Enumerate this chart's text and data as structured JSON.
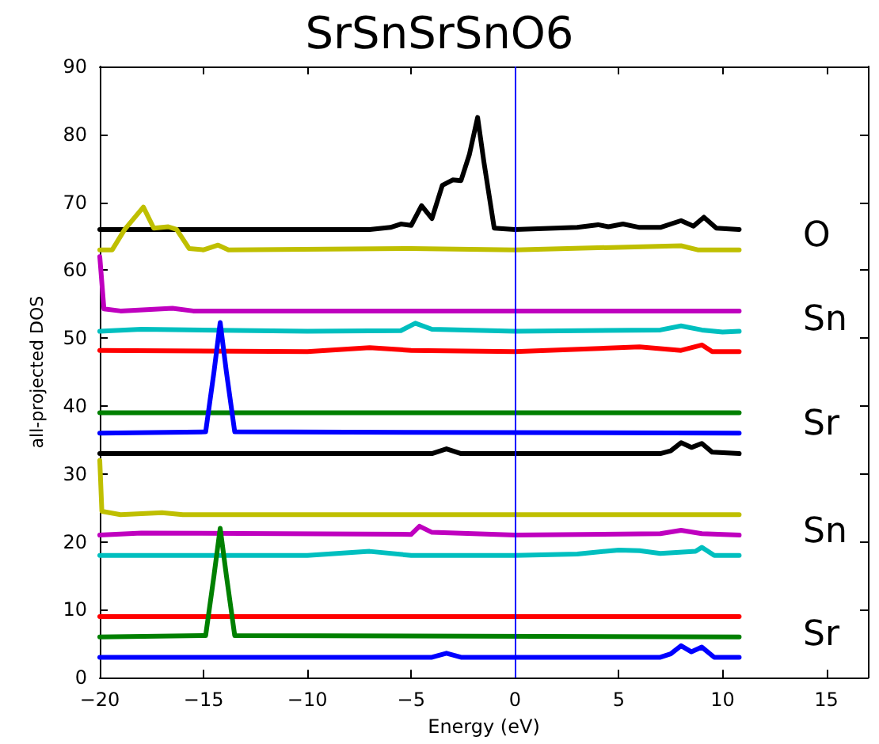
{
  "chart_data": {
    "type": "line",
    "title": "SrSnSrSnO6",
    "xlabel": "Energy (eV)",
    "ylabel": "all-projected DOS",
    "xlim": [
      -20,
      17
    ],
    "xticks": [
      -20,
      -15,
      -10,
      -5,
      0,
      5,
      10,
      15
    ],
    "ylim": [
      0,
      90
    ],
    "yticks": [
      0,
      10,
      20,
      30,
      40,
      50,
      60,
      70,
      80,
      90
    ],
    "grid": false,
    "marker": "none",
    "line_style": "solid",
    "ref_lines": [
      {
        "axis": "x",
        "value": 0,
        "color": "#0000ff"
      }
    ],
    "annotations": [
      "O",
      "Sn",
      "Sr",
      "Sn",
      "Sr"
    ],
    "series": [
      {
        "color": "#000000",
        "x": [
          -20,
          -7,
          -6,
          -5.5,
          -5,
          -4.5,
          -4,
          -3.5,
          -3,
          -2.6,
          -2.2,
          -1.8,
          -1.5,
          -1,
          0,
          3,
          4,
          4.5,
          5.2,
          6,
          7,
          8,
          8.6,
          9.1,
          9.7,
          10.8
        ],
        "values": [
          66,
          66,
          66.3,
          66.8,
          66.6,
          69.5,
          67.6,
          72.5,
          73.3,
          73.2,
          77,
          82.5,
          76,
          66.2,
          66,
          66.3,
          66.7,
          66.4,
          66.8,
          66.3,
          66.3,
          67.3,
          66.5,
          67.8,
          66.2,
          66
        ]
      },
      {
        "color": "#bfbf00",
        "x": [
          -20,
          -19.4,
          -18.8,
          -17.9,
          -17.4,
          -16.7,
          -16.3,
          -15.7,
          -15,
          -14.3,
          -13.8,
          -5,
          0,
          8,
          8.8,
          10.8
        ],
        "values": [
          63,
          63,
          66,
          69.3,
          66.2,
          66.4,
          66,
          63.2,
          63,
          63.7,
          63,
          63.2,
          63,
          63.6,
          63,
          63
        ]
      },
      {
        "color": "#bf00bf",
        "x": [
          -20,
          -19.8,
          -19,
          -16.5,
          -15.5,
          10.8
        ],
        "values": [
          62,
          54.3,
          54,
          54.4,
          54,
          54
        ]
      },
      {
        "color": "#00bfbf",
        "x": [
          -20,
          -18,
          -10,
          -5.5,
          -4.8,
          -4,
          0,
          7,
          8,
          9,
          10,
          10.8
        ],
        "values": [
          51,
          51.3,
          51,
          51.1,
          52.2,
          51.3,
          51,
          51.2,
          51.8,
          51.2,
          50.9,
          51
        ]
      },
      {
        "color": "#ff0000",
        "x": [
          -20,
          -10,
          -7,
          -5,
          0,
          5,
          6,
          8,
          9,
          9.5,
          10.8
        ],
        "values": [
          48.2,
          48,
          48.6,
          48.2,
          48,
          48.6,
          48.7,
          48.2,
          49,
          48,
          48
        ]
      },
      {
        "color": "#008000",
        "x": [
          -20,
          10.8
        ],
        "values": [
          39,
          39
        ]
      },
      {
        "color": "#0000ff",
        "x": [
          -20,
          -14.9,
          -14.5,
          -14.2,
          -13.9,
          -13.5,
          10.8
        ],
        "values": [
          36,
          36.2,
          45,
          52.3,
          45,
          36.2,
          36
        ]
      },
      {
        "color": "#000000",
        "x": [
          -20,
          -4,
          -3.3,
          -2.6,
          7,
          7.5,
          8,
          8.5,
          9,
          9.5,
          10.8
        ],
        "values": [
          33,
          33,
          33.7,
          33,
          33,
          33.4,
          34.6,
          33.9,
          34.5,
          33.2,
          33
        ]
      },
      {
        "color": "#bfbf00",
        "x": [
          -20,
          -19.9,
          -19,
          -17,
          -16,
          10.8
        ],
        "values": [
          32,
          24.5,
          24,
          24.3,
          24,
          24
        ]
      },
      {
        "color": "#bf00bf",
        "x": [
          -20,
          -18,
          -5,
          -4.6,
          -4,
          0,
          7,
          8,
          9,
          10.8
        ],
        "values": [
          21,
          21.3,
          21.1,
          22.3,
          21.4,
          21,
          21.2,
          21.7,
          21.2,
          21
        ]
      },
      {
        "color": "#00bfbf",
        "x": [
          -20,
          -10,
          -7,
          -5,
          0,
          3,
          5,
          6,
          7,
          8.7,
          9,
          9.6,
          10.8
        ],
        "values": [
          18,
          18,
          18.6,
          18,
          18,
          18.2,
          18.8,
          18.7,
          18.3,
          18.6,
          19.2,
          18,
          18
        ]
      },
      {
        "color": "#ff0000",
        "x": [
          -20,
          10.8
        ],
        "values": [
          9,
          9
        ]
      },
      {
        "color": "#008000",
        "x": [
          -20,
          -14.9,
          -14.5,
          -14.2,
          -13.9,
          -13.5,
          10.8
        ],
        "values": [
          6,
          6.2,
          15,
          22,
          15,
          6.2,
          6
        ]
      },
      {
        "color": "#0000ff",
        "x": [
          -20,
          -4,
          -3.3,
          -2.6,
          7,
          7.5,
          8,
          8.5,
          9,
          9.6,
          10.8
        ],
        "values": [
          3,
          3,
          3.6,
          3,
          3,
          3.5,
          4.7,
          3.8,
          4.5,
          3,
          3
        ]
      }
    ]
  }
}
